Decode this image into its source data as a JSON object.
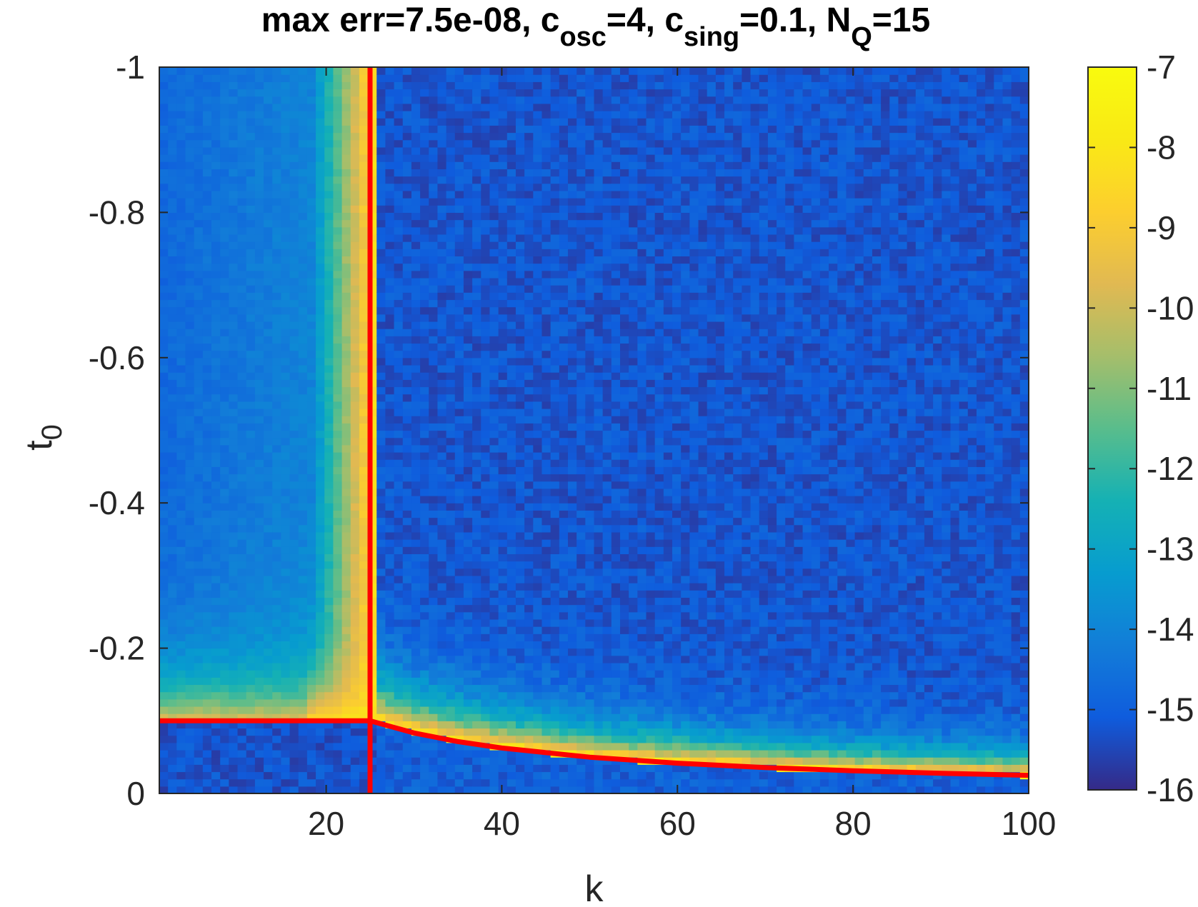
{
  "chart_data": {
    "type": "heatmap",
    "title": {
      "parts": [
        {
          "text": "max err=7.5e-08, c",
          "sub": false
        },
        {
          "text": "osc",
          "sub": true
        },
        {
          "text": "=4, c",
          "sub": false
        },
        {
          "text": "sing",
          "sub": true
        },
        {
          "text": "=0.1, N",
          "sub": false
        },
        {
          "text": "Q",
          "sub": true
        },
        {
          "text": "=15",
          "sub": false
        }
      ]
    },
    "xlabel": "k",
    "ylabel": {
      "main": "t",
      "sub": "0"
    },
    "xlim": [
      1,
      100
    ],
    "ylim": [
      0,
      -1
    ],
    "y_direction": "reversed",
    "x_ticks": [
      20,
      40,
      60,
      80,
      100
    ],
    "y_ticks": [
      -1,
      -0.8,
      -0.6,
      -0.4,
      -0.2,
      0
    ],
    "x_tick_labels": [
      "20",
      "40",
      "60",
      "80",
      "100"
    ],
    "y_tick_labels": [
      "-1",
      "-0.8",
      "-0.6",
      "-0.4",
      "-0.2",
      "0"
    ],
    "grid": {
      "nx": 100,
      "ny": 100,
      "k_range": [
        1,
        100
      ],
      "t0_range": [
        0,
        -1
      ]
    },
    "value_description": "log10 of error",
    "colormap": "parula",
    "color_limits": [
      -16,
      -7
    ],
    "colorbar": {
      "position": "right",
      "ticks": [
        -7,
        -8,
        -9,
        -10,
        -11,
        -12,
        -13,
        -14,
        -15,
        -16
      ],
      "tick_labels": [
        "-7",
        "-8",
        "-9",
        "-10",
        "-11",
        "-12",
        "-13",
        "-14",
        "-15",
        "-16"
      ]
    },
    "overlay_lines": [
      {
        "color": "#ff0000",
        "x": [
          1,
          25
        ],
        "y": [
          -0.1,
          -0.1
        ]
      },
      {
        "color": "#ff0000",
        "x": [
          25,
          25
        ],
        "y": [
          -1,
          0
        ]
      },
      {
        "color": "#ff0000",
        "x": [
          25,
          30,
          35,
          40,
          50,
          60,
          70,
          80,
          90,
          100
        ],
        "y": [
          -0.1,
          -0.0833,
          -0.0714,
          -0.0625,
          -0.05,
          -0.0417,
          -0.0357,
          -0.0313,
          -0.0278,
          -0.025
        ]
      }
    ]
  }
}
